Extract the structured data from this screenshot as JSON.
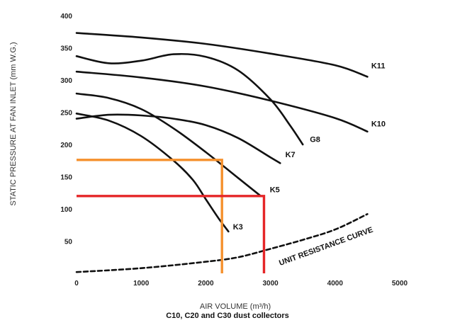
{
  "caption": "C10, C20 and C30 dust collectors",
  "chart_data": {
    "type": "line",
    "xlabel": "AIR VOLUME (m³/h)",
    "ylabel": "STATIC PRESSURE AT FAN INLET (mm W.G.)",
    "xlim": [
      0,
      5000
    ],
    "ylim": [
      0,
      400
    ],
    "x_ticks": [
      0,
      1000,
      2000,
      3000,
      4000,
      5000
    ],
    "y_ticks": [
      50,
      100,
      150,
      200,
      250,
      300,
      350,
      400
    ],
    "y_tick_labels": [
      "50",
      "100",
      "150",
      "200",
      "250",
      "300",
      "350",
      "400"
    ],
    "x_tick_labels": [
      "0",
      "1000",
      "2000",
      "3000",
      "4000",
      "5000"
    ],
    "grid": false,
    "series": [
      {
        "name": "K11",
        "style": "solid",
        "points": [
          [
            0,
            373
          ],
          [
            1000,
            366
          ],
          [
            2000,
            356
          ],
          [
            3000,
            341
          ],
          [
            4000,
            323
          ],
          [
            4500,
            305
          ]
        ]
      },
      {
        "name": "K10",
        "style": "solid",
        "points": [
          [
            0,
            313
          ],
          [
            1000,
            304
          ],
          [
            2000,
            290
          ],
          [
            3000,
            268
          ],
          [
            4000,
            241
          ],
          [
            4500,
            220
          ]
        ]
      },
      {
        "name": "G8",
        "style": "solid",
        "points": [
          [
            0,
            337
          ],
          [
            500,
            326
          ],
          [
            1000,
            330
          ],
          [
            1500,
            340
          ],
          [
            2000,
            336
          ],
          [
            2500,
            315
          ],
          [
            3000,
            270
          ],
          [
            3300,
            230
          ],
          [
            3500,
            200
          ]
        ]
      },
      {
        "name": "K7",
        "style": "solid",
        "points": [
          [
            0,
            240
          ],
          [
            500,
            246
          ],
          [
            1000,
            245
          ],
          [
            1500,
            240
          ],
          [
            2000,
            230
          ],
          [
            2500,
            210
          ],
          [
            3000,
            180
          ],
          [
            3150,
            171
          ]
        ]
      },
      {
        "name": "K5",
        "style": "solid",
        "points": [
          [
            0,
            279
          ],
          [
            500,
            272
          ],
          [
            1000,
            255
          ],
          [
            1500,
            225
          ],
          [
            2000,
            188
          ],
          [
            2500,
            148
          ],
          [
            2850,
            120
          ]
        ]
      },
      {
        "name": "K3",
        "style": "solid",
        "points": [
          [
            0,
            248
          ],
          [
            500,
            237
          ],
          [
            1000,
            213
          ],
          [
            1500,
            175
          ],
          [
            1800,
            145
          ],
          [
            2000,
            115
          ],
          [
            2200,
            85
          ],
          [
            2350,
            65
          ]
        ]
      },
      {
        "name": "UNIT RESISTANCE CURVE",
        "style": "dashed",
        "points": [
          [
            0,
            2
          ],
          [
            1000,
            8
          ],
          [
            2000,
            18
          ],
          [
            2500,
            25
          ],
          [
            3000,
            38
          ],
          [
            3500,
            52
          ],
          [
            4000,
            68
          ],
          [
            4500,
            92
          ]
        ]
      }
    ],
    "guides": [
      {
        "color": "#F5902C",
        "x": 2250,
        "y": 176
      },
      {
        "color": "#E52628",
        "x": 2900,
        "y": 120
      }
    ],
    "labels": [
      {
        "series": "K11",
        "text": "K11",
        "x": 4560,
        "y": 318
      },
      {
        "series": "K10",
        "text": "K10",
        "x": 4560,
        "y": 228
      },
      {
        "series": "G8",
        "text": "G8",
        "x": 3610,
        "y": 204
      },
      {
        "series": "K7",
        "text": "K7",
        "x": 3230,
        "y": 180
      },
      {
        "series": "K5",
        "text": "K5",
        "x": 2990,
        "y": 126
      },
      {
        "series": "K3",
        "text": "K3",
        "x": 2420,
        "y": 68
      },
      {
        "series": "UNIT RESISTANCE CURVE",
        "text": "UNIT RESISTANCE CURVE",
        "x": 3150,
        "y": 12,
        "rotate": -20
      }
    ]
  }
}
